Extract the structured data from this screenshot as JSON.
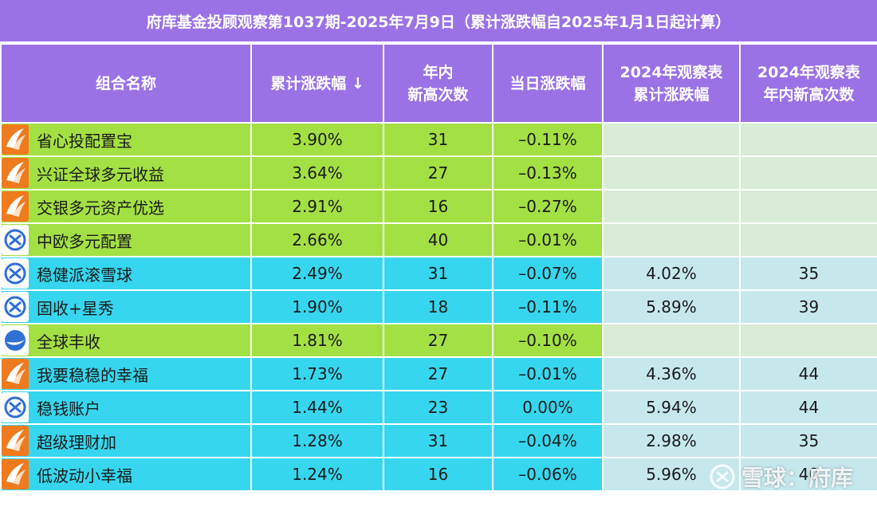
{
  "title": "府库基金投顾观察第1037期-2025年7月9日（累计涨跌幅自2025年1月1日起计算）",
  "headers": {
    "name": "组合名称",
    "cum_return": "累计涨跌幅 ↓",
    "new_highs_line1": "年内",
    "new_highs_line2": "新高次数",
    "daily_change": "当日涨跌幅",
    "y2024_return_line1": "2024年观察表",
    "y2024_return_line2": "累计涨跌幅",
    "y2024_highs_line1": "2024年观察表",
    "y2024_highs_line2": "年内新高次数"
  },
  "rows": [
    {
      "logo": "orange-flag-logo",
      "name": "省心投配置宝",
      "cum_return": "3.90%",
      "new_highs": "31",
      "daily_change": "–0.11%",
      "y2024_return": "",
      "y2024_highs": "",
      "row_color": "green"
    },
    {
      "logo": "orange-flag-logo",
      "name": "兴证全球多元收益",
      "cum_return": "3.64%",
      "new_highs": "27",
      "daily_change": "–0.13%",
      "y2024_return": "",
      "y2024_highs": "",
      "row_color": "green"
    },
    {
      "logo": "orange-flag-logo",
      "name": "交银多元资产优选",
      "cum_return": "2.91%",
      "new_highs": "16",
      "daily_change": "–0.27%",
      "y2024_return": "",
      "y2024_highs": "",
      "row_color": "green"
    },
    {
      "logo": "blue-circle-logo",
      "name": "中欧多元配置",
      "cum_return": "2.66%",
      "new_highs": "40",
      "daily_change": "–0.01%",
      "y2024_return": "",
      "y2024_highs": "",
      "row_color": "green"
    },
    {
      "logo": "blue-circle-logo",
      "name": "稳健派滚雪球",
      "cum_return": "2.49%",
      "new_highs": "31",
      "daily_change": "–0.07%",
      "y2024_return": "4.02%",
      "y2024_highs": "35",
      "row_color": "blue"
    },
    {
      "logo": "blue-circle-logo",
      "name": "固收+星秀",
      "cum_return": "1.90%",
      "new_highs": "18",
      "daily_change": "–0.11%",
      "y2024_return": "5.89%",
      "y2024_highs": "39",
      "row_color": "blue"
    },
    {
      "logo": "blue-wave-logo",
      "name": "全球丰收",
      "cum_return": "1.81%",
      "new_highs": "27",
      "daily_change": "–0.10%",
      "y2024_return": "",
      "y2024_highs": "",
      "row_color": "green"
    },
    {
      "logo": "orange-flag-logo",
      "name": "我要稳稳的幸福",
      "cum_return": "1.73%",
      "new_highs": "27",
      "daily_change": "–0.01%",
      "y2024_return": "4.36%",
      "y2024_highs": "44",
      "row_color": "blue"
    },
    {
      "logo": "blue-circle-logo",
      "name": "稳钱账户",
      "cum_return": "1.44%",
      "new_highs": "23",
      "daily_change": "0.00%",
      "y2024_return": "5.94%",
      "y2024_highs": "44",
      "row_color": "blue"
    },
    {
      "logo": "orange-flag-logo",
      "name": "超级理财加",
      "cum_return": "1.28%",
      "new_highs": "31",
      "daily_change": "–0.04%",
      "y2024_return": "2.98%",
      "y2024_highs": "35",
      "row_color": "blue"
    },
    {
      "logo": "orange-flag-logo",
      "name": "低波动小幸福",
      "cum_return": "1.24%",
      "new_highs": "16",
      "daily_change": "–0.06%",
      "y2024_return": "5.96%",
      "y2024_highs": "40",
      "row_color": "blue"
    }
  ],
  "watermark": "雪球：府库",
  "colors": {
    "header_purple": "#9b72e6",
    "row_green": "#a3e044",
    "row_blue": "#36d6ee",
    "y2024_green": "#d8ecd8",
    "y2024_blue": "#c6e8ec",
    "logo_orange": "#f07a1e",
    "logo_blue": "#2f6fd6"
  }
}
